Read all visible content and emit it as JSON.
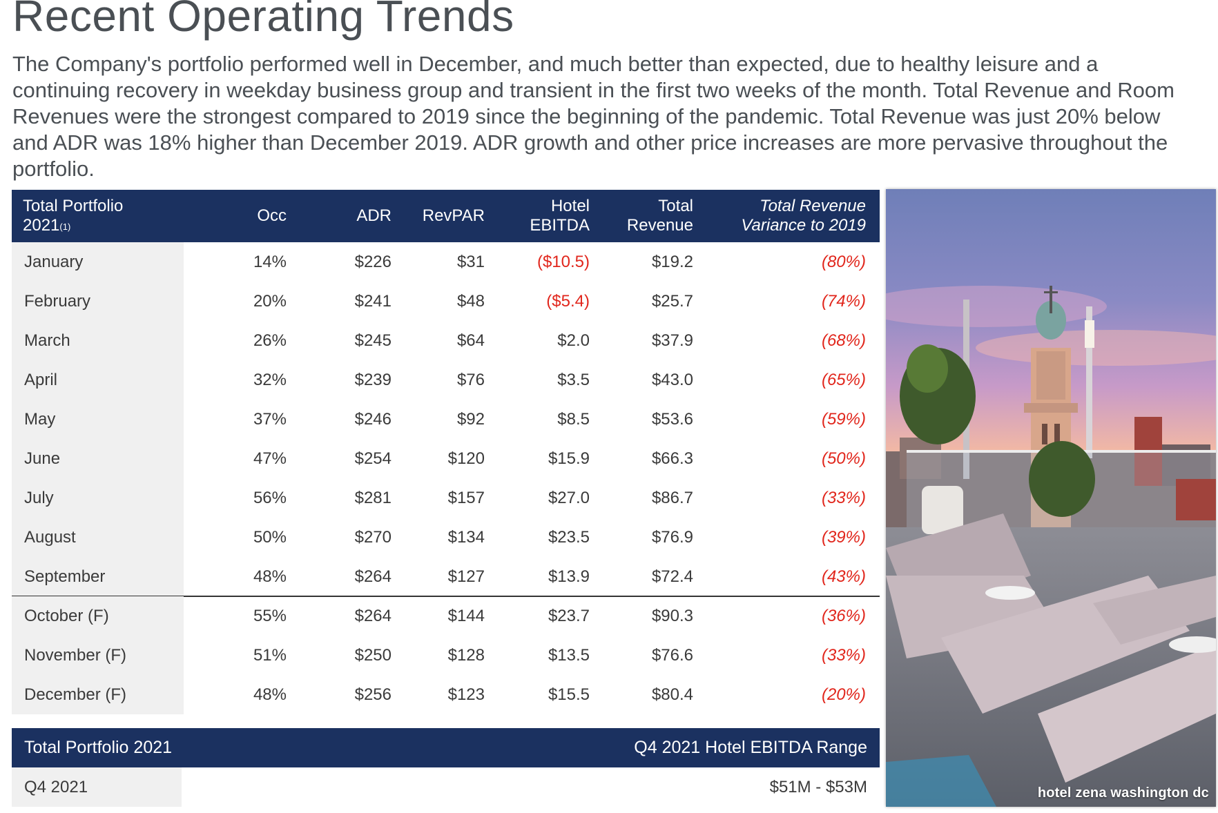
{
  "title": "Recent Operating Trends",
  "intro": "The Company's portfolio performed well in December, and much better than expected, due to healthy leisure and a continuing recovery in weekday business group and transient in the first two weeks of the month.  Total Revenue and Room Revenues were the strongest compared to 2019 since the beginning of the pandemic.  Total Revenue was just 20% below and ADR was 18% higher than December 2019.  ADR growth and other price increases are more pervasive throughout the portfolio.",
  "table": {
    "headers": {
      "portfolio_line1": "Total Portfolio",
      "portfolio_line2": "2021",
      "footnote": "(1)",
      "occ": "Occ",
      "adr": "ADR",
      "revpar": "RevPAR",
      "ebitda_line1": "Hotel",
      "ebitda_line2": "EBITDA",
      "revenue_line1": "Total",
      "revenue_line2": "Revenue",
      "variance_line1": "Total Revenue",
      "variance_line2": "Variance to 2019"
    },
    "rows": [
      {
        "month": "January",
        "occ": "14%",
        "adr": "$226",
        "revpar": "$31",
        "ebitda": "($10.5)",
        "ebitda_negative": true,
        "revenue": "$19.2",
        "variance": "(80%)"
      },
      {
        "month": "February",
        "occ": "20%",
        "adr": "$241",
        "revpar": "$48",
        "ebitda": "($5.4)",
        "ebitda_negative": true,
        "revenue": "$25.7",
        "variance": "(74%)"
      },
      {
        "month": "March",
        "occ": "26%",
        "adr": "$245",
        "revpar": "$64",
        "ebitda": "$2.0",
        "ebitda_negative": false,
        "revenue": "$37.9",
        "variance": "(68%)"
      },
      {
        "month": "April",
        "occ": "32%",
        "adr": "$239",
        "revpar": "$76",
        "ebitda": "$3.5",
        "ebitda_negative": false,
        "revenue": "$43.0",
        "variance": "(65%)"
      },
      {
        "month": "May",
        "occ": "37%",
        "adr": "$246",
        "revpar": "$92",
        "ebitda": "$8.5",
        "ebitda_negative": false,
        "revenue": "$53.6",
        "variance": "(59%)"
      },
      {
        "month": "June",
        "occ": "47%",
        "adr": "$254",
        "revpar": "$120",
        "ebitda": "$15.9",
        "ebitda_negative": false,
        "revenue": "$66.3",
        "variance": "(50%)"
      },
      {
        "month": "July",
        "occ": "56%",
        "adr": "$281",
        "revpar": "$157",
        "ebitda": "$27.0",
        "ebitda_negative": false,
        "revenue": "$86.7",
        "variance": "(33%)"
      },
      {
        "month": "August",
        "occ": "50%",
        "adr": "$270",
        "revpar": "$134",
        "ebitda": "$23.5",
        "ebitda_negative": false,
        "revenue": "$76.9",
        "variance": "(39%)"
      },
      {
        "month": "September",
        "occ": "48%",
        "adr": "$264",
        "revpar": "$127",
        "ebitda": "$13.9",
        "ebitda_negative": false,
        "revenue": "$72.4",
        "variance": "(43%)"
      },
      {
        "month": "October (F)",
        "occ": "55%",
        "adr": "$264",
        "revpar": "$144",
        "ebitda": "$23.7",
        "ebitda_negative": false,
        "revenue": "$90.3",
        "variance": "(36%)"
      },
      {
        "month": "November (F)",
        "occ": "51%",
        "adr": "$250",
        "revpar": "$128",
        "ebitda": "$13.5",
        "ebitda_negative": false,
        "revenue": "$76.6",
        "variance": "(33%)"
      },
      {
        "month": "December (F)",
        "occ": "48%",
        "adr": "$256",
        "revpar": "$123",
        "ebitda": "$15.5",
        "ebitda_negative": false,
        "revenue": "$80.4",
        "variance": "(20%)"
      }
    ]
  },
  "summary": {
    "header_left": "Total Portfolio 2021",
    "header_right": "Q4 2021 Hotel EBITDA Range",
    "row_label": "Q4 2021",
    "row_value": "$51M - $53M"
  },
  "photo": {
    "caption": "hotel zena washington dc"
  },
  "colors": {
    "header_bg": "#1b3160",
    "negative": "#e1261c",
    "label_bg": "#f0f0f0"
  }
}
